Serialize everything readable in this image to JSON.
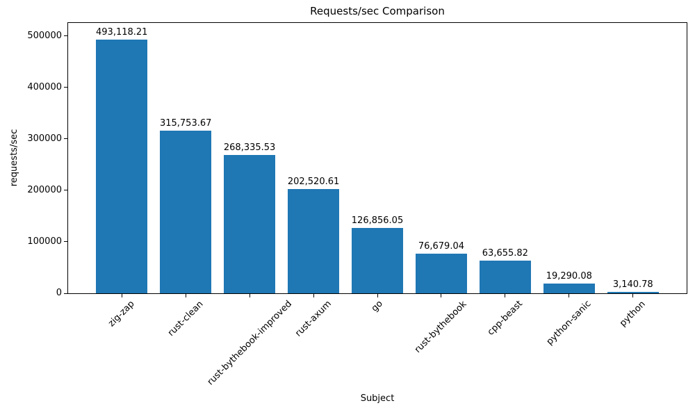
{
  "chart_data": {
    "type": "bar",
    "title": "Requests/sec Comparison",
    "xlabel": "Subject",
    "ylabel": "requests/sec",
    "categories": [
      "zig-zap",
      "rust-clean",
      "rust-bythebook-improved",
      "rust-axum",
      "go",
      "rust-bythebook",
      "cpp-beast",
      "python-sanic",
      "python"
    ],
    "values": [
      493118.21,
      315753.67,
      268335.53,
      202520.61,
      126856.05,
      76679.04,
      63655.82,
      19290.08,
      3140.78
    ],
    "value_labels": [
      "493,118.21",
      "315,753.67",
      "268,335.53",
      "202,520.61",
      "126,856.05",
      "76,679.04",
      "63,655.82",
      "19,290.08",
      "3,140.78"
    ],
    "yticks": [
      0,
      100000,
      200000,
      300000,
      400000,
      500000
    ],
    "ytick_labels": [
      "0",
      "100000",
      "200000",
      "300000",
      "400000",
      "500000"
    ],
    "xlim": [
      -0.84,
      8.84
    ],
    "ylim": [
      0,
      525000
    ],
    "bar_width_units": 0.8,
    "bar_color": "#1f77b4",
    "background_color": "#ffffff",
    "text_color": "#000000",
    "grid": false,
    "legend": null,
    "x_tick_rotation_deg": 45
  }
}
